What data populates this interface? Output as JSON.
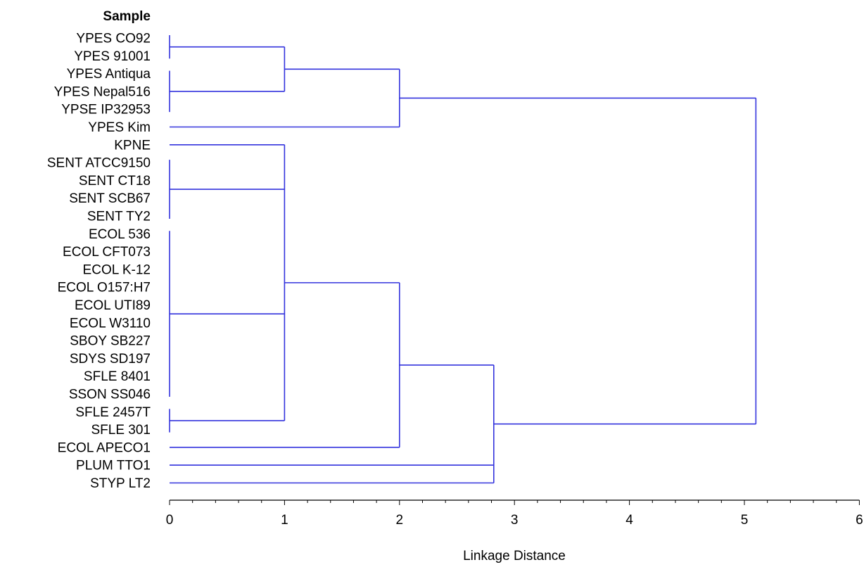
{
  "chart_data": {
    "type": "dendrogram",
    "orientation": "horizontal",
    "leaf_header": "Sample",
    "xlabel": "Linkage Distance",
    "xlim": [
      0,
      6
    ],
    "x_ticks": [
      0,
      1,
      2,
      3,
      4,
      5,
      6
    ],
    "x_minor_step": 0.2,
    "grid": false,
    "line_color": "#3333dd",
    "leaves": [
      "YPES CO92",
      "YPES 91001",
      "YPES Antiqua",
      "YPES Nepal516",
      "YPSE IP32953",
      "YPES Kim",
      "KPNE",
      "SENT ATCC9150",
      "SENT CT18",
      "SENT SCB67",
      "SENT TY2",
      "ECOL 536",
      "ECOL CFT073",
      "ECOL K-12",
      "ECOL O157:H7",
      "ECOL UTI89",
      "ECOL W3110",
      "SBOY SB227",
      "SDYS SD197",
      "SFLE 8401",
      "SSON SS046",
      "SFLE 2457T",
      "SFLE 301",
      "ECOL APECO1",
      "PLUM TTO1",
      "STYP LT2"
    ],
    "clusters": [
      {
        "id": "y0a",
        "height": 0,
        "members": [
          0,
          1
        ]
      },
      {
        "id": "y0b",
        "height": 0,
        "members": [
          2,
          3,
          4
        ]
      },
      {
        "id": "y1",
        "height": 1,
        "members": [
          "y0a",
          "y0b"
        ]
      },
      {
        "id": "y2",
        "height": 2,
        "members": [
          "y1",
          5
        ]
      },
      {
        "id": "s0",
        "height": 0,
        "members": [
          7,
          8,
          9,
          10
        ]
      },
      {
        "id": "e0",
        "height": 0,
        "members": [
          11,
          12,
          13,
          14,
          15,
          16,
          17,
          18,
          19,
          20
        ]
      },
      {
        "id": "f0",
        "height": 0,
        "members": [
          21,
          22
        ]
      },
      {
        "id": "b1",
        "height": 1,
        "members": [
          6,
          "s0",
          "e0",
          "f0"
        ]
      },
      {
        "id": "b2",
        "height": 2,
        "members": [
          "b1",
          23
        ]
      },
      {
        "id": "b3",
        "height": 2.82,
        "members": [
          "b2",
          24,
          25
        ]
      },
      {
        "id": "root",
        "height": 5.1,
        "members": [
          "y2",
          "b3"
        ]
      }
    ]
  }
}
